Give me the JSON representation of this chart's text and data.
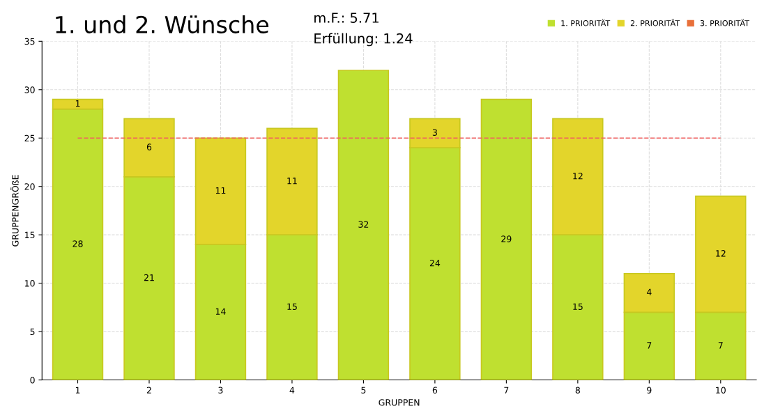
{
  "chart_data": {
    "type": "bar",
    "title": "1. und 2. Wünsche",
    "xlabel": "GRUPPEN",
    "ylabel": "GRUPPENGRÖßE",
    "annotations": [
      "m.F.: 5.71",
      "Erfüllung: 1.24"
    ],
    "categories": [
      "1",
      "2",
      "3",
      "4",
      "5",
      "6",
      "7",
      "8",
      "9",
      "10"
    ],
    "series": [
      {
        "name": "1. PRIORITÄT",
        "color": "#bfe030",
        "values": [
          28,
          21,
          14,
          15,
          32,
          24,
          29,
          15,
          7,
          7
        ]
      },
      {
        "name": "2. PRIORITÄT",
        "color": "#e3d52b",
        "values": [
          1,
          6,
          11,
          11,
          null,
          3,
          null,
          12,
          4,
          12
        ]
      },
      {
        "name": "3. PRIORITÄT",
        "color": "#e8703a",
        "values": [
          null,
          null,
          null,
          null,
          null,
          null,
          null,
          null,
          null,
          null
        ]
      }
    ],
    "stacked": true,
    "data_labels": true,
    "ylim": [
      0,
      35
    ],
    "yticks": [
      0,
      5,
      10,
      15,
      20,
      25,
      30,
      35
    ],
    "grid": true,
    "legend": "top right",
    "ref_lines": [
      {
        "axis": "y",
        "value": 25,
        "color": "#f06060",
        "line_style": "dashed"
      }
    ]
  }
}
